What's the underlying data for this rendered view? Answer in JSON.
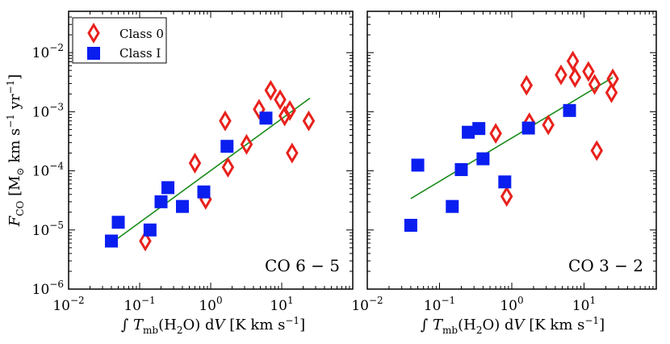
{
  "chart_data": [
    {
      "type": "scatter",
      "panel": "left",
      "annotation": "CO 6 − 5",
      "xlabel": "∫ T_mb(H₂O) dV [K km s⁻¹]",
      "ylabel": "F_CO [M⊙ km s⁻¹ yr⁻¹]",
      "xscale": "log",
      "yscale": "log",
      "xlim": [
        0.01,
        100
      ],
      "ylim": [
        1e-06,
        0.05
      ],
      "legend_position": "top-left",
      "series": [
        {
          "name": "Class 0",
          "marker": "diamond-open",
          "color": "#e8211c",
          "x": [
            0.12,
            0.6,
            0.85,
            1.6,
            1.75,
            3.2,
            4.8,
            7.0,
            9.5,
            11.0,
            13.0,
            14.0,
            24.0
          ],
          "y": [
            6.5e-06,
            0.000135,
            3.3e-05,
            0.0007,
            0.000115,
            0.00028,
            0.0011,
            0.0023,
            0.0016,
            0.00085,
            0.00105,
            0.0002,
            0.0007
          ]
        },
        {
          "name": "Class I",
          "marker": "square",
          "color": "#0a1ef0",
          "x": [
            0.04,
            0.05,
            0.14,
            0.2,
            0.25,
            0.4,
            0.8,
            1.7,
            6.0
          ],
          "y": [
            6.5e-06,
            1.35e-05,
            1e-05,
            3e-05,
            5.2e-05,
            2.5e-05,
            4.4e-05,
            0.00026,
            0.00078
          ]
        }
      ],
      "fit": {
        "color": "#1a8c1a",
        "x": [
          0.04,
          25.0
        ],
        "y": [
          6e-06,
          0.0017
        ]
      }
    },
    {
      "type": "scatter",
      "panel": "right",
      "annotation": "CO 3 − 2",
      "xlabel": "∫ T_mb(H₂O) dV [K km s⁻¹]",
      "xscale": "log",
      "yscale": "log",
      "xlim": [
        0.01,
        100
      ],
      "ylim": [
        1e-06,
        0.05
      ],
      "series": [
        {
          "name": "Class 0",
          "marker": "diamond-open",
          "color": "#e8211c",
          "x": [
            0.6,
            0.85,
            1.6,
            1.75,
            3.2,
            4.8,
            7.0,
            7.5,
            11.5,
            14.0,
            15.0,
            24.0,
            25.0
          ],
          "y": [
            0.00043,
            3.7e-05,
            0.0028,
            0.00065,
            0.0006,
            0.0042,
            0.0072,
            0.0038,
            0.0048,
            0.0029,
            0.00022,
            0.0021,
            0.0036
          ]
        },
        {
          "name": "Class I",
          "marker": "square",
          "color": "#0a1ef0",
          "x": [
            0.04,
            0.05,
            0.15,
            0.2,
            0.25,
            0.35,
            0.4,
            0.8,
            1.7,
            6.3
          ],
          "y": [
            1.2e-05,
            0.000125,
            2.5e-05,
            0.000105,
            0.00045,
            0.00052,
            0.00016,
            6.5e-05,
            0.00053,
            0.00105
          ]
        }
      ],
      "fit": {
        "color": "#1a8c1a",
        "x": [
          0.04,
          25.0
        ],
        "y": [
          3.4e-05,
          0.0038
        ]
      }
    }
  ],
  "legend": {
    "class0_label": "Class 0",
    "class1_label": "Class I"
  },
  "y_ticks": [
    {
      "base": "10",
      "exp": "−2",
      "value": 0.01
    },
    {
      "base": "10",
      "exp": "−3",
      "value": 0.001
    },
    {
      "base": "10",
      "exp": "−4",
      "value": 0.0001
    },
    {
      "base": "10",
      "exp": "−5",
      "value": 1e-05
    },
    {
      "base": "10",
      "exp": "−6",
      "value": 1e-06
    }
  ],
  "x_ticks": [
    {
      "base": "10",
      "exp": "−2",
      "value": 0.01
    },
    {
      "base": "10",
      "exp": "−1",
      "value": 0.1
    },
    {
      "base": "10",
      "exp": "0",
      "value": 1
    },
    {
      "base": "10",
      "exp": "1",
      "value": 10
    }
  ]
}
